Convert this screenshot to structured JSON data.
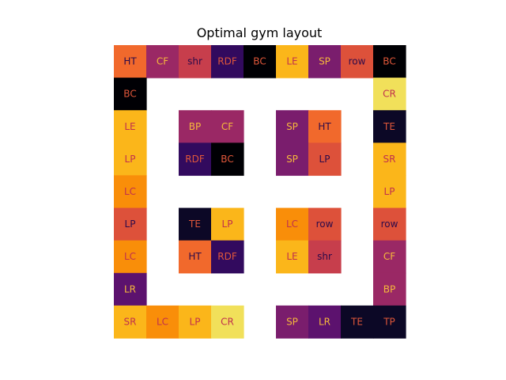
{
  "chart_data": {
    "type": "heatmap",
    "title": "Optimal gym layout",
    "rows": 9,
    "cols": 9,
    "grid": false,
    "cells": [
      {
        "row": 0,
        "col": 0,
        "label": "HT",
        "color": "#f1692c"
      },
      {
        "row": 0,
        "col": 1,
        "label": "CF",
        "color": "#9a2865"
      },
      {
        "row": 0,
        "col": 2,
        "label": "shr",
        "color": "#c73e4c"
      },
      {
        "row": 0,
        "col": 3,
        "label": "RDF",
        "color": "#320a5e"
      },
      {
        "row": 0,
        "col": 4,
        "label": "BC",
        "color": "#000004"
      },
      {
        "row": 0,
        "col": 5,
        "label": "LE",
        "color": "#fbb61a"
      },
      {
        "row": 0,
        "col": 6,
        "label": "SP",
        "color": "#7a1d6d"
      },
      {
        "row": 0,
        "col": 7,
        "label": "row",
        "color": "#dd513a"
      },
      {
        "row": 0,
        "col": 8,
        "label": "BC",
        "color": "#000004"
      },
      {
        "row": 1,
        "col": 0,
        "label": "BC",
        "color": "#000004"
      },
      {
        "row": 1,
        "col": 8,
        "label": "CR",
        "color": "#f1e05a"
      },
      {
        "row": 2,
        "col": 0,
        "label": "LE",
        "color": "#fbb61a"
      },
      {
        "row": 2,
        "col": 2,
        "label": "BP",
        "color": "#9a2865"
      },
      {
        "row": 2,
        "col": 3,
        "label": "CF",
        "color": "#9a2865"
      },
      {
        "row": 2,
        "col": 5,
        "label": "SP",
        "color": "#7a1d6d"
      },
      {
        "row": 2,
        "col": 6,
        "label": "HT",
        "color": "#f1692c"
      },
      {
        "row": 2,
        "col": 8,
        "label": "TE",
        "color": "#0c0826"
      },
      {
        "row": 3,
        "col": 0,
        "label": "LP",
        "color": "#fbb61a"
      },
      {
        "row": 3,
        "col": 2,
        "label": "RDF",
        "color": "#320a5e"
      },
      {
        "row": 3,
        "col": 3,
        "label": "BC",
        "color": "#000004"
      },
      {
        "row": 3,
        "col": 5,
        "label": "SP",
        "color": "#7a1d6d"
      },
      {
        "row": 3,
        "col": 6,
        "label": "LP",
        "color": "#dd513a"
      },
      {
        "row": 3,
        "col": 8,
        "label": "SR",
        "color": "#fbb61a"
      },
      {
        "row": 4,
        "col": 0,
        "label": "LC",
        "color": "#f98e09"
      },
      {
        "row": 4,
        "col": 8,
        "label": "LP",
        "color": "#fbb61a"
      },
      {
        "row": 5,
        "col": 0,
        "label": "LP",
        "color": "#dd513a"
      },
      {
        "row": 5,
        "col": 2,
        "label": "TE",
        "color": "#0c0826"
      },
      {
        "row": 5,
        "col": 3,
        "label": "LP",
        "color": "#fbb61a"
      },
      {
        "row": 5,
        "col": 5,
        "label": "LC",
        "color": "#f98e09"
      },
      {
        "row": 5,
        "col": 6,
        "label": "row",
        "color": "#dd513a"
      },
      {
        "row": 5,
        "col": 8,
        "label": "row",
        "color": "#dd513a"
      },
      {
        "row": 6,
        "col": 0,
        "label": "LC",
        "color": "#f98e09"
      },
      {
        "row": 6,
        "col": 2,
        "label": "HT",
        "color": "#f1692c"
      },
      {
        "row": 6,
        "col": 3,
        "label": "RDF",
        "color": "#320a5e"
      },
      {
        "row": 6,
        "col": 5,
        "label": "LE",
        "color": "#fbb61a"
      },
      {
        "row": 6,
        "col": 6,
        "label": "shr",
        "color": "#c73e4c"
      },
      {
        "row": 6,
        "col": 8,
        "label": "CF",
        "color": "#9a2865"
      },
      {
        "row": 7,
        "col": 0,
        "label": "LR",
        "color": "#5c126e"
      },
      {
        "row": 7,
        "col": 8,
        "label": "BP",
        "color": "#9a2865"
      },
      {
        "row": 8,
        "col": 0,
        "label": "SR",
        "color": "#fbb61a"
      },
      {
        "row": 8,
        "col": 1,
        "label": "LC",
        "color": "#f98e09"
      },
      {
        "row": 8,
        "col": 2,
        "label": "LP",
        "color": "#fbb61a"
      },
      {
        "row": 8,
        "col": 3,
        "label": "CR",
        "color": "#f1e05a"
      },
      {
        "row": 8,
        "col": 5,
        "label": "SP",
        "color": "#7a1d6d"
      },
      {
        "row": 8,
        "col": 6,
        "label": "LR",
        "color": "#5c126e"
      },
      {
        "row": 8,
        "col": 7,
        "label": "TE",
        "color": "#0c0826"
      },
      {
        "row": 8,
        "col": 8,
        "label": "TP",
        "color": "#0c0826"
      }
    ]
  }
}
